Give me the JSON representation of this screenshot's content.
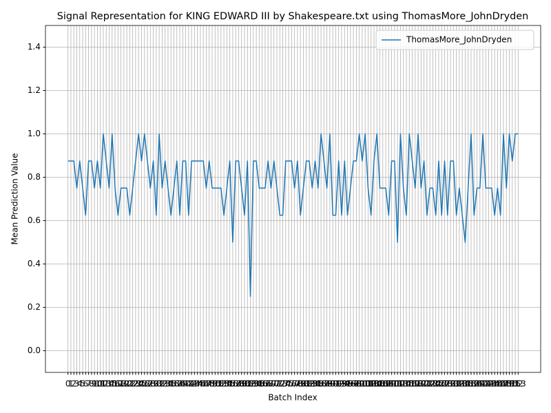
{
  "chart_data": {
    "type": "line",
    "title": "Signal Representation for KING EDWARD III by Shakespeare.txt using ThomasMore_JohnDryden",
    "xlabel": "Batch Index",
    "ylabel": "Mean Prediction Value",
    "x": [
      0,
      1,
      2,
      3,
      4,
      5,
      6,
      7,
      8,
      9,
      10,
      11,
      12,
      13,
      14,
      15,
      16,
      17,
      18,
      19,
      20,
      21,
      22,
      23,
      24,
      25,
      26,
      27,
      28,
      29,
      30,
      31,
      32,
      33,
      34,
      35,
      36,
      37,
      38,
      39,
      40,
      41,
      42,
      43,
      44,
      45,
      46,
      47,
      48,
      49,
      50,
      51,
      52,
      53,
      54,
      55,
      56,
      57,
      58,
      59,
      60,
      61,
      62,
      63,
      64,
      65,
      66,
      67,
      68,
      69,
      70,
      71,
      72,
      73,
      74,
      75,
      76,
      77,
      78,
      79,
      80,
      81,
      82,
      83,
      84,
      85,
      86,
      87,
      88,
      89,
      90,
      91,
      92,
      93,
      94,
      95,
      96,
      97,
      98,
      99,
      100,
      101,
      102,
      103,
      104,
      105,
      106,
      107,
      108,
      109,
      110,
      111,
      112,
      113,
      114,
      115,
      116,
      117,
      118,
      119,
      120,
      121,
      122,
      123,
      124,
      125,
      126,
      127,
      128,
      129,
      130,
      131,
      132,
      133,
      134,
      135,
      136,
      137,
      138,
      139,
      140,
      141,
      142,
      143,
      144,
      145,
      146,
      147,
      148,
      149,
      150,
      151,
      152,
      153
    ],
    "series": [
      {
        "name": "ThomasMore_JohnDryden",
        "color": "#1f77b4",
        "values": [
          0.875,
          0.875,
          0.875,
          0.75,
          0.875,
          0.75,
          0.625,
          0.875,
          0.875,
          0.75,
          0.875,
          0.75,
          1,
          0.875,
          0.75,
          1,
          0.75,
          0.625,
          0.75,
          0.75,
          0.75,
          0.625,
          0.75,
          0.875,
          1,
          0.875,
          1,
          0.875,
          0.75,
          0.875,
          0.625,
          1,
          0.75,
          0.875,
          0.75,
          0.625,
          0.75,
          0.875,
          0.625,
          0.875,
          0.875,
          0.625,
          0.875,
          0.875,
          0.875,
          0.875,
          0.875,
          0.75,
          0.875,
          0.75,
          0.75,
          0.75,
          0.75,
          0.625,
          0.75,
          0.875,
          0.5,
          0.875,
          0.875,
          0.75,
          0.625,
          0.875,
          0.25,
          0.875,
          0.875,
          0.75,
          0.75,
          0.75,
          0.875,
          0.75,
          0.875,
          0.75,
          0.625,
          0.625,
          0.875,
          0.875,
          0.875,
          0.75,
          0.875,
          0.625,
          0.75,
          0.875,
          0.875,
          0.75,
          0.875,
          0.75,
          1,
          0.875,
          0.75,
          1,
          0.625,
          0.625,
          0.875,
          0.625,
          0.875,
          0.625,
          0.75,
          0.875,
          0.875,
          1,
          0.875,
          1,
          0.75,
          0.625,
          0.875,
          1,
          0.75,
          0.75,
          0.75,
          0.625,
          0.875,
          0.875,
          0.5,
          1,
          0.75,
          0.625,
          1,
          0.875,
          0.75,
          1,
          0.75,
          0.875,
          0.625,
          0.75,
          0.75,
          0.625,
          0.875,
          0.625,
          0.875,
          0.625,
          0.875,
          0.875,
          0.625,
          0.75,
          0.625,
          0.5,
          0.75,
          1,
          0.625,
          0.75,
          0.75,
          1,
          0.75,
          0.75,
          0.75,
          0.625,
          0.75,
          0.625,
          1,
          0.75,
          1,
          0.875,
          1,
          1
        ]
      }
    ],
    "xlim": [
      -7.65,
      160.65
    ],
    "xticks": [
      0,
      1,
      2,
      3,
      4,
      5,
      6,
      7,
      8,
      9,
      10,
      11,
      12,
      13,
      14,
      15,
      16,
      17,
      18,
      19,
      20,
      21,
      22,
      23,
      24,
      25,
      26,
      27,
      28,
      29,
      30,
      31,
      32,
      33,
      34,
      35,
      36,
      37,
      38,
      39,
      40,
      41,
      42,
      43,
      44,
      45,
      46,
      47,
      48,
      49,
      50,
      51,
      52,
      53,
      54,
      55,
      56,
      57,
      58,
      59,
      60,
      61,
      62,
      63,
      64,
      65,
      66,
      67,
      68,
      69,
      70,
      71,
      72,
      73,
      74,
      75,
      76,
      77,
      78,
      79,
      80,
      81,
      82,
      83,
      84,
      85,
      86,
      87,
      88,
      89,
      90,
      91,
      92,
      93,
      94,
      95,
      96,
      97,
      98,
      99,
      100,
      101,
      102,
      103,
      104,
      105,
      106,
      107,
      108,
      109,
      110,
      111,
      112,
      113,
      114,
      115,
      116,
      117,
      118,
      119,
      120,
      121,
      122,
      123,
      124,
      125,
      126,
      127,
      128,
      129,
      130,
      131,
      132,
      133,
      134,
      135,
      136,
      137,
      138,
      139,
      140,
      141,
      142,
      143,
      144,
      145,
      146,
      147,
      148,
      149,
      150,
      151,
      152,
      153
    ],
    "ylim": [
      -0.1,
      1.5
    ],
    "yticks": [
      {
        "value": 0,
        "label": "0.0"
      },
      0.2,
      0.4,
      0.6,
      0.8,
      {
        "value": 1,
        "label": "1.0"
      },
      1.2,
      1.4
    ],
    "grid": true,
    "legend": "upper right"
  }
}
